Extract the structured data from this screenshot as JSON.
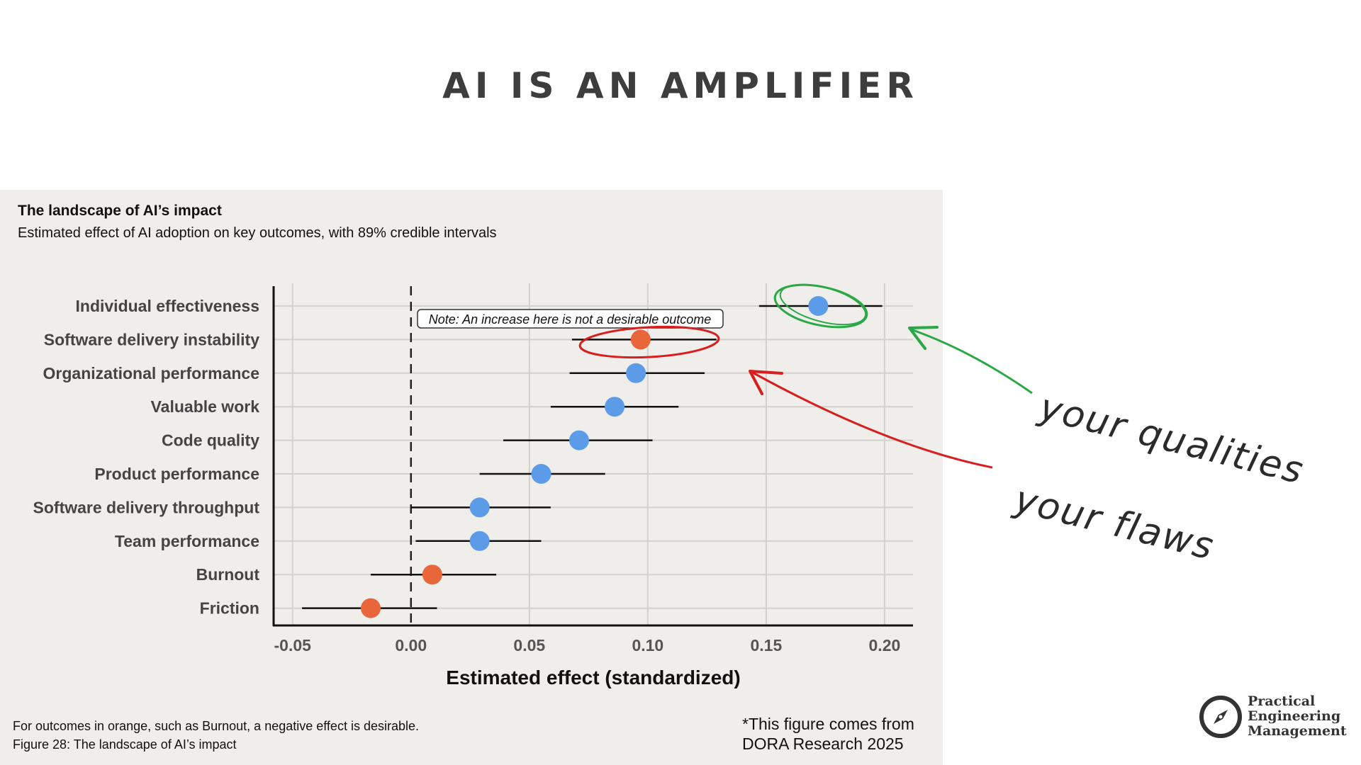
{
  "slide": {
    "title": "AI IS AN AMPLIFIER",
    "source_note": "*This figure comes from\nDORA Research 2025",
    "handwritten_qualities": "your qualities",
    "handwritten_flaws": "your flaws",
    "logo_text": "Practical\nEngineering\nManagement",
    "logo_icon": "compass-icon"
  },
  "chart_data": {
    "type": "forest",
    "title": "The landscape of AI’s impact",
    "subtitle": "Estimated effect of AI adoption on key outcomes, with 89% credible intervals",
    "xlabel": "Estimated effect (standardized)",
    "xlim": [
      -0.058,
      0.212
    ],
    "xticks": [
      -0.05,
      0.0,
      0.05,
      0.1,
      0.15,
      0.2
    ],
    "xtick_labels": [
      "-0.05",
      "0.00",
      "0.05",
      "0.10",
      "0.15",
      "0.20"
    ],
    "reference_line": 0,
    "grid": true,
    "categories": [
      "Individual effectiveness",
      "Software delivery instability",
      "Organizational performance",
      "Valuable work",
      "Code quality",
      "Product performance",
      "Software delivery throughput",
      "Team performance",
      "Burnout",
      "Friction"
    ],
    "estimates": [
      0.172,
      0.097,
      0.095,
      0.086,
      0.071,
      0.055,
      0.029,
      0.029,
      0.009,
      -0.017
    ],
    "lower": [
      0.147,
      0.068,
      0.067,
      0.059,
      0.039,
      0.029,
      0.0,
      0.002,
      -0.017,
      -0.046
    ],
    "upper": [
      0.199,
      0.129,
      0.124,
      0.113,
      0.102,
      0.082,
      0.059,
      0.055,
      0.036,
      0.011
    ],
    "colors": [
      "#5b9be8",
      "#e8663a",
      "#5b9be8",
      "#5b9be8",
      "#5b9be8",
      "#5b9be8",
      "#5b9be8",
      "#5b9be8",
      "#e8663a",
      "#e8663a"
    ],
    "annotation": "Note: An increase here is not a desirable outcome",
    "footnote_1": "For outcomes in orange, such as Burnout, a negative effect is desirable.",
    "footnote_2": "Figure 28: The landscape of AI’s impact",
    "highlight_colors": {
      "qualities": "#2aa845",
      "flaws": "#d81e1e"
    }
  }
}
